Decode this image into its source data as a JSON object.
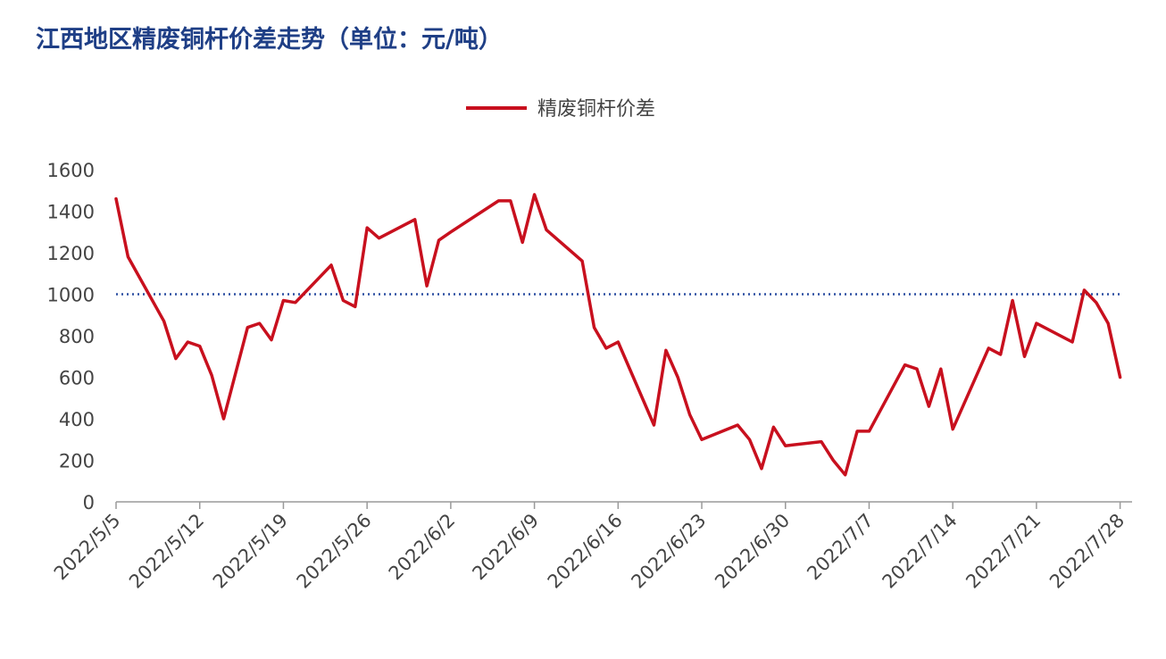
{
  "chart_data": {
    "type": "line",
    "title": "江西地区精废铜杆价差走势（单位：元/吨）",
    "legend": [
      "精废铜杆价差"
    ],
    "legend_position": "top-center",
    "reference_line": {
      "value": 1000,
      "style": "dotted",
      "color": "#2b4ea2"
    },
    "ylim": [
      0,
      1600
    ],
    "yticks": [
      0,
      200,
      400,
      600,
      800,
      1000,
      1200,
      1400,
      1600
    ],
    "xlim": [
      "2022-05-05",
      "2022-07-29"
    ],
    "xticks": [
      "2022/5/5",
      "2022/5/12",
      "2022/5/19",
      "2022/5/26",
      "2022/6/2",
      "2022/6/9",
      "2022/6/16",
      "2022/6/23",
      "2022/6/30",
      "2022/7/7",
      "2022/7/14",
      "2022/7/21",
      "2022/7/28"
    ],
    "grid": false,
    "series": [
      {
        "name": "精废铜杆价差",
        "color": "#c8101e",
        "x": [
          "2022-05-05",
          "2022-05-06",
          "2022-05-09",
          "2022-05-10",
          "2022-05-11",
          "2022-05-12",
          "2022-05-13",
          "2022-05-14",
          "2022-05-16",
          "2022-05-17",
          "2022-05-18",
          "2022-05-19",
          "2022-05-20",
          "2022-05-23",
          "2022-05-24",
          "2022-05-25",
          "2022-05-26",
          "2022-05-27",
          "2022-05-30",
          "2022-05-31",
          "2022-06-01",
          "2022-06-02",
          "2022-06-06",
          "2022-06-07",
          "2022-06-08",
          "2022-06-09",
          "2022-06-10",
          "2022-06-13",
          "2022-06-14",
          "2022-06-15",
          "2022-06-16",
          "2022-06-19",
          "2022-06-20",
          "2022-06-21",
          "2022-06-22",
          "2022-06-23",
          "2022-06-26",
          "2022-06-27",
          "2022-06-28",
          "2022-06-29",
          "2022-06-30",
          "2022-07-03",
          "2022-07-04",
          "2022-07-05",
          "2022-07-06",
          "2022-07-07",
          "2022-07-10",
          "2022-07-11",
          "2022-07-12",
          "2022-07-13",
          "2022-07-14",
          "2022-07-17",
          "2022-07-18",
          "2022-07-19",
          "2022-07-20",
          "2022-07-21",
          "2022-07-24",
          "2022-07-25",
          "2022-07-26",
          "2022-07-27",
          "2022-07-28"
        ],
        "y": [
          1460,
          1180,
          870,
          690,
          770,
          750,
          610,
          400,
          840,
          860,
          780,
          970,
          960,
          1140,
          970,
          940,
          1320,
          1270,
          1360,
          1040,
          1260,
          1300,
          1450,
          1450,
          1250,
          1480,
          1310,
          1160,
          840,
          740,
          770,
          370,
          730,
          600,
          420,
          300,
          370,
          300,
          160,
          360,
          270,
          290,
          200,
          130,
          340,
          340,
          660,
          640,
          460,
          640,
          350,
          740,
          710,
          970,
          700,
          860,
          770,
          1020,
          960,
          860,
          600
        ]
      }
    ]
  }
}
